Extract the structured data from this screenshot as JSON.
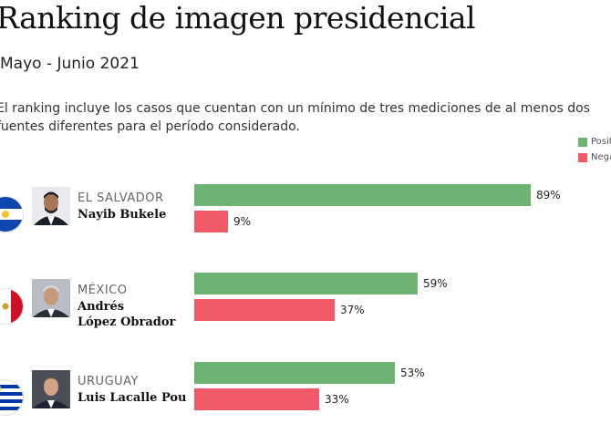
{
  "title": "Ranking de imagen presidencial",
  "subtitle": "Mayo - Junio 2021",
  "description": "El ranking incluye los casos que cuentan con un mínimo de tres mediciones de al menos dos fuentes diferentes para el período considerado.",
  "legend": [
    {
      "label": "Posit",
      "color": "#6db472"
    },
    {
      "label": "Nega",
      "color": "#f05a67"
    }
  ],
  "chart_data": {
    "type": "bar",
    "orientation": "horizontal",
    "categories": [
      "Nayib Bukele",
      "Andrés López Obrador",
      "Luis Lacalle Pou"
    ],
    "countries": [
      "EL SALVADOR",
      "MÉXICO",
      "URUGUAY"
    ],
    "series": [
      {
        "name": "Posit",
        "color": "#6db472",
        "values": [
          89,
          59,
          53
        ]
      },
      {
        "name": "Nega",
        "color": "#f05a67",
        "values": [
          9,
          37,
          33
        ]
      }
    ],
    "value_suffix": "%",
    "xlim": [
      0,
      100
    ]
  },
  "rows": [
    {
      "country": "EL SALVADOR",
      "name_lines": [
        "Nayib Bukele"
      ],
      "positive_label": "89%",
      "negative_label": "9%"
    },
    {
      "country": "MÉXICO",
      "name_lines": [
        "Andrés",
        "López Obrador"
      ],
      "positive_label": "59%",
      "negative_label": "37%"
    },
    {
      "country": "URUGUAY",
      "name_lines": [
        "Luis Lacalle Pou"
      ],
      "positive_label": "53%",
      "negative_label": "33%"
    }
  ]
}
